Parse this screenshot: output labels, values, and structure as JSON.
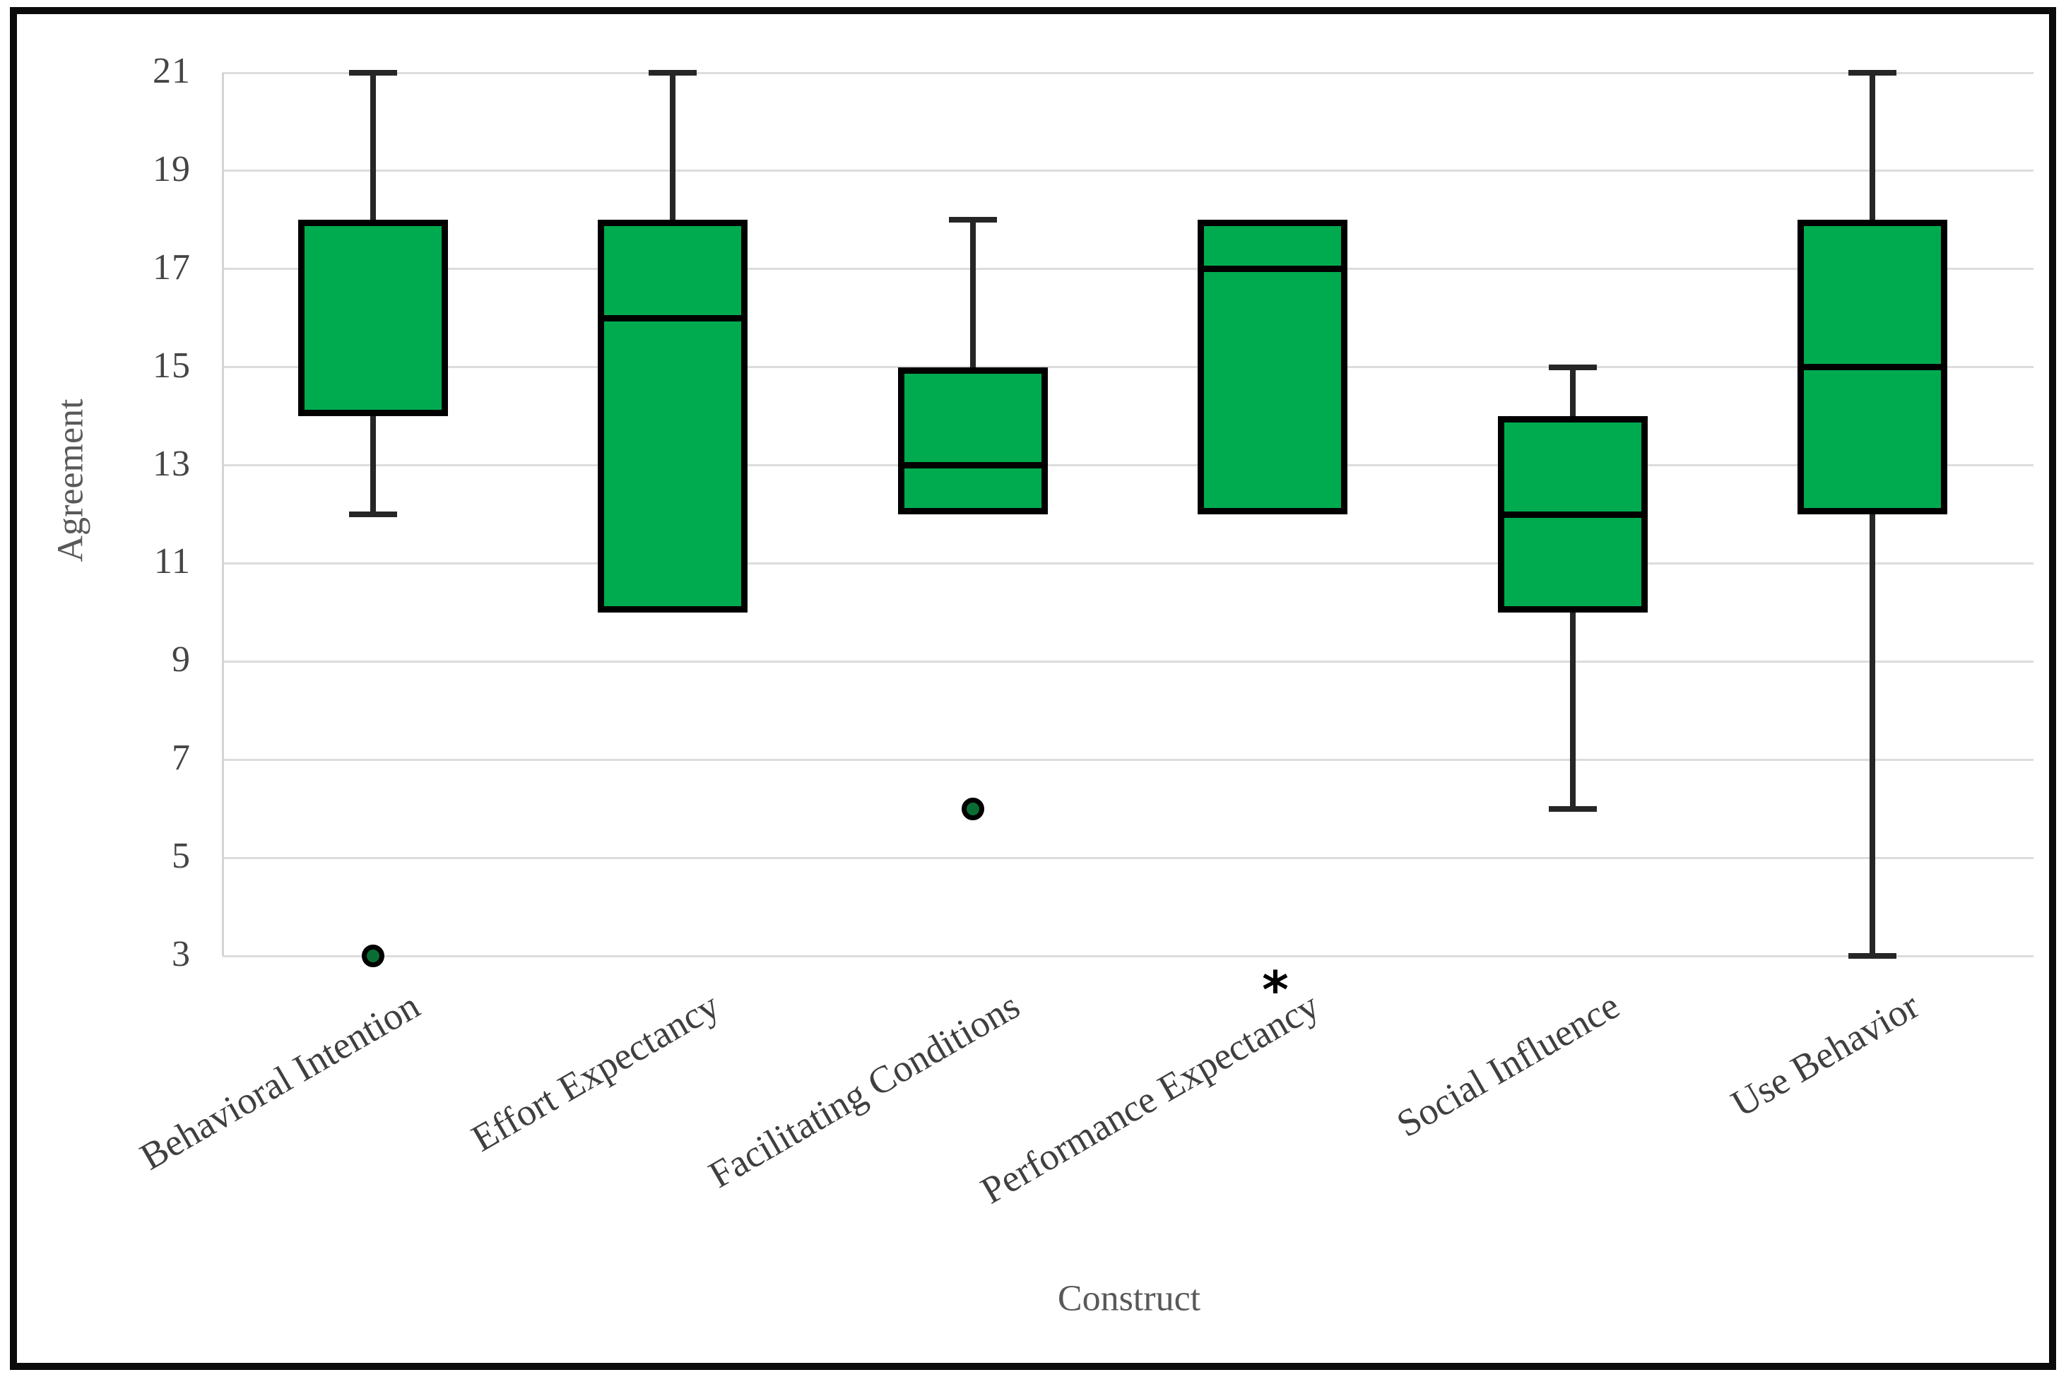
{
  "figure": {
    "background": "#ffffff",
    "border_color": "#0b0b0b"
  },
  "chart_data": {
    "type": "boxplot",
    "title": "",
    "xlabel": "Construct",
    "ylabel": "Agreement",
    "ylim": [
      3,
      21
    ],
    "y_ticks": [
      21,
      19,
      17,
      15,
      13,
      11,
      9,
      7,
      5,
      3
    ],
    "grid": true,
    "legend": "none",
    "box_fill_color": "#00AB50",
    "box_border_color": "#000000",
    "whisker_color": "#262626",
    "gridline_color": "#dcdcdc",
    "outlier_fill_color": "#0a6e34",
    "extreme_marker_symbol": "*",
    "categories": [
      "Behavioral Intention",
      "Effort Expectancy",
      "Facilitating Conditions",
      "Performance Expectancy",
      "Social Influence",
      "Use Behavior"
    ],
    "series": [
      {
        "label": "Behavioral Intention",
        "whisker_low": 12,
        "q1": 14,
        "median": null,
        "q3": 18,
        "whisker_high": 21,
        "outliers": [
          3
        ],
        "extreme_marker": false
      },
      {
        "label": "Effort Expectancy",
        "whisker_low": 10,
        "q1": 10,
        "median": 16,
        "q3": 18,
        "whisker_high": 21,
        "outliers": [],
        "extreme_marker": false
      },
      {
        "label": "Facilitating Conditions",
        "whisker_low": 12,
        "q1": 12,
        "median": 13,
        "q3": 15,
        "whisker_high": 18,
        "outliers": [
          6
        ],
        "extreme_marker": false
      },
      {
        "label": "Performance Expectancy",
        "whisker_low": 12,
        "q1": 12,
        "median": 17,
        "q3": 18,
        "whisker_high": 18,
        "outliers": [],
        "extreme_marker": true
      },
      {
        "label": "Social Influence",
        "whisker_low": 6,
        "q1": 10,
        "median": 12,
        "q3": 14,
        "whisker_high": 15,
        "outliers": [],
        "extreme_marker": false
      },
      {
        "label": "Use Behavior",
        "whisker_low": 3,
        "q1": 12,
        "median": 15,
        "q3": 18,
        "whisker_high": 21,
        "outliers": [],
        "extreme_marker": false
      }
    ]
  }
}
